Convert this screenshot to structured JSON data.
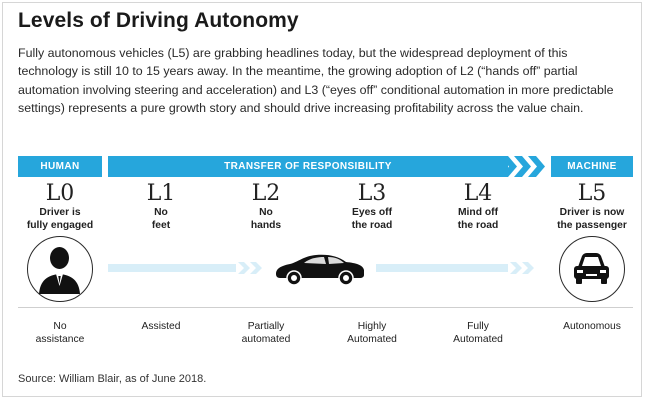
{
  "title": "Levels of Driving Autonomy",
  "intro": "Fully autonomous vehicles (L5) are grabbing headlines today, but the widespread deployment of this technology is still 10 to 15 years away. In the meantime, the growing adoption of L2 (“hands off” partial automation involving steering and acceleration) and L3 (“eyes off” conditional automation in more predictable settings) represents a pure growth story and should drive increasing profitability across the value chain.",
  "bands": {
    "human": "HUMAN",
    "transfer": "TRANSFER OF RESPONSIBILITY",
    "machine": "MACHINE"
  },
  "levels": [
    {
      "code": "L0",
      "desc_line1": "Driver is",
      "desc_line2": "fully engaged",
      "cat_line1": "No",
      "cat_line2": "assistance"
    },
    {
      "code": "L1",
      "desc_line1": "No",
      "desc_line2": "feet",
      "cat_line1": "Assisted",
      "cat_line2": ""
    },
    {
      "code": "L2",
      "desc_line1": "No",
      "desc_line2": "hands",
      "cat_line1": "Partially",
      "cat_line2": "automated"
    },
    {
      "code": "L3",
      "desc_line1": "Eyes off",
      "desc_line2": "the road",
      "cat_line1": "Highly",
      "cat_line2": "Automated"
    },
    {
      "code": "L4",
      "desc_line1": "Mind off",
      "desc_line2": "the road",
      "cat_line1": "Fully",
      "cat_line2": "Automated"
    },
    {
      "code": "L5",
      "desc_line1": "Driver is now",
      "desc_line2": "the passenger",
      "cat_line1": "Autonomous",
      "cat_line2": ""
    }
  ],
  "icons": [
    "person-icon",
    "car-side-icon",
    "car-front-icon"
  ],
  "colors": {
    "accent": "#26a6dc",
    "flow_light": "#d8eef8",
    "ink": "#1a1a1a"
  },
  "source": "Source: William Blair, as of June 2018."
}
